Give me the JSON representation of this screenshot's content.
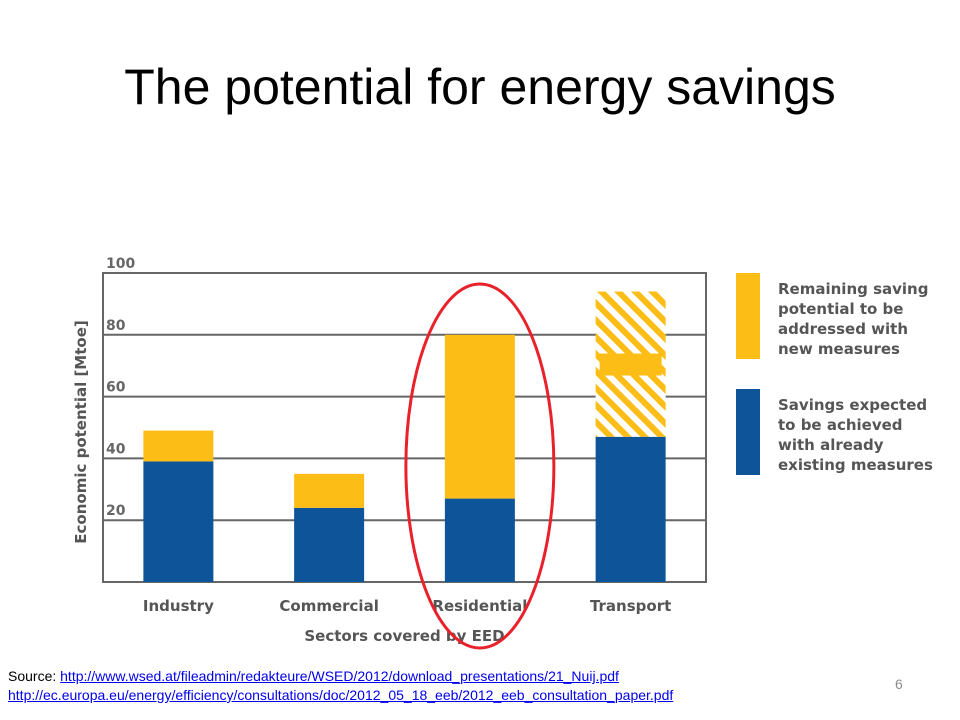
{
  "slide": {
    "title": "The potential for energy savings",
    "source_label": "Source: ",
    "links": [
      "http://www.wsed.at/fileadmin/redakteure/WSED/2012/download_presentations/21_Nuij.pdf",
      "http://ec.europa.eu/energy/efficiency/consultations/doc/2012_05_18_eeb/2012_eeb_consultation_paper.pdf"
    ],
    "page_number": "6"
  },
  "chart_data": {
    "type": "bar",
    "stacked": true,
    "xlabel": "Sectors covered by EED",
    "ylabel": "Economic potential [Mtoe]",
    "ylim": [
      0,
      100
    ],
    "yticks": [
      20,
      40,
      60,
      80,
      100
    ],
    "grid": true,
    "categories": [
      "Industry",
      "Commercial",
      "Residential",
      "Transport"
    ],
    "series": [
      {
        "name": "Savings expected to be achieved with already existing measures",
        "color": "#0e5498",
        "values": [
          39,
          24,
          27,
          47
        ]
      },
      {
        "name": "Remaining saving potential to be addressed with new measures",
        "color": "#fdbd17",
        "values": [
          10,
          11,
          53,
          47
        ]
      }
    ],
    "hatched_categories": [
      "Transport"
    ],
    "highlighted_category": "Residential",
    "highlight_color": "#e8212a",
    "legend_position": "right",
    "legend": [
      "Remaining saving potential to be addressed with new measures",
      "Savings expected to be achieved with already existing measures"
    ],
    "legend_lines": [
      [
        "Remaining saving",
        "potential to be",
        "addressed with",
        "new measures"
      ],
      [
        "Savings expected",
        "to be achieved",
        "with already",
        "existing measures"
      ]
    ]
  }
}
